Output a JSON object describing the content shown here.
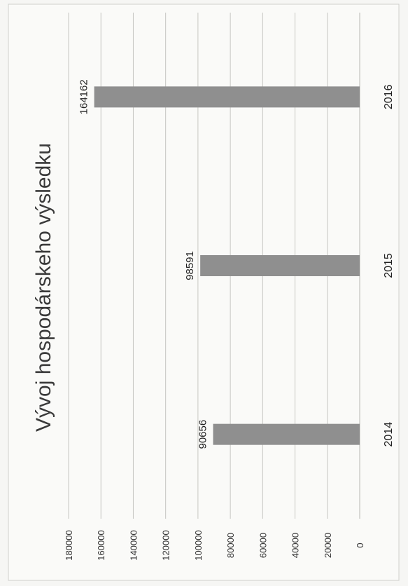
{
  "chart_data": {
    "type": "bar",
    "title": "Vývoj hospodárskeho výsledku",
    "categories": [
      "2014",
      "2015",
      "2016"
    ],
    "values": [
      90656,
      98591,
      164162
    ],
    "data_labels": [
      "90656",
      "98591",
      "164162"
    ],
    "ylim": [
      0,
      180000
    ],
    "yticks": [
      0,
      20000,
      40000,
      60000,
      80000,
      100000,
      120000,
      140000,
      160000,
      180000
    ],
    "ytick_labels": [
      "0",
      "20000",
      "40000",
      "60000",
      "80000",
      "100000",
      "120000",
      "140000",
      "160000",
      "180000"
    ],
    "xlabel": "",
    "ylabel": "",
    "grid": true,
    "legend": "none",
    "orientation": "page rotated 90 degrees counter-clockwise",
    "bar_color": "#8f8f8f"
  }
}
